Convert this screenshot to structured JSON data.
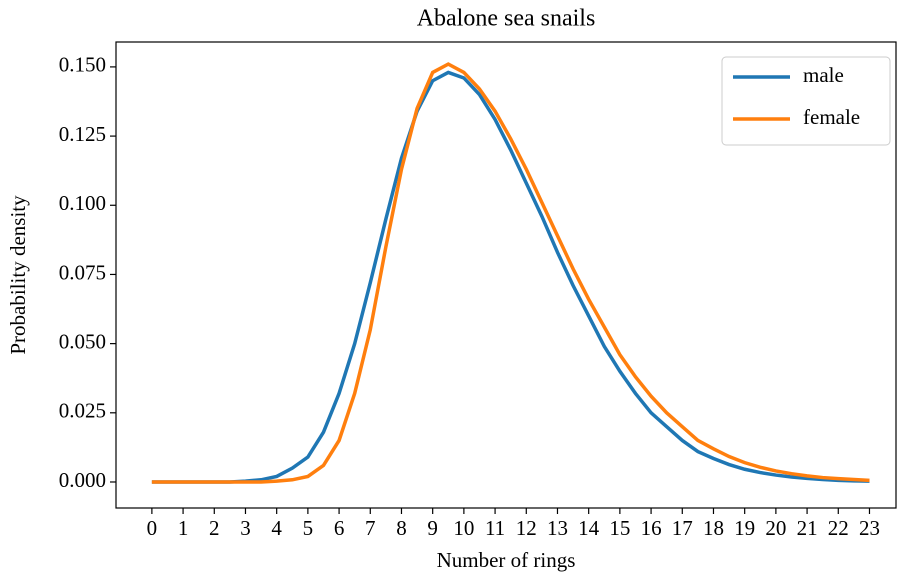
{
  "chart_data": {
    "type": "line",
    "title": "Abalone sea snails",
    "xlabel": "Number of rings",
    "ylabel": "Probability density",
    "x": [
      0,
      0.5,
      1,
      1.5,
      2,
      2.5,
      3,
      3.5,
      4,
      4.5,
      5,
      5.5,
      6,
      6.5,
      7,
      7.5,
      8,
      8.5,
      9,
      9.5,
      10,
      10.5,
      11,
      11.5,
      12,
      12.5,
      13,
      13.5,
      14,
      14.5,
      15,
      15.5,
      16,
      16.5,
      17,
      17.5,
      18,
      18.5,
      19,
      19.5,
      20,
      20.5,
      21,
      21.5,
      22,
      22.5,
      23
    ],
    "series": [
      {
        "name": "male",
        "color": "#1f77b4",
        "values": [
          0,
          0,
          0,
          0,
          0,
          0,
          0.0003,
          0.0008,
          0.002,
          0.005,
          0.009,
          0.018,
          0.032,
          0.05,
          0.072,
          0.095,
          0.117,
          0.134,
          0.145,
          0.148,
          0.146,
          0.14,
          0.131,
          0.12,
          0.108,
          0.096,
          0.083,
          0.071,
          0.06,
          0.049,
          0.04,
          0.032,
          0.025,
          0.02,
          0.015,
          0.011,
          0.0085,
          0.0063,
          0.0046,
          0.0034,
          0.0025,
          0.0018,
          0.0013,
          0.0009,
          0.0006,
          0.0004,
          0.0003
        ]
      },
      {
        "name": "female",
        "color": "#ff7f0e",
        "values": [
          0,
          0,
          0,
          0,
          0,
          0,
          0,
          0,
          0.0003,
          0.0008,
          0.002,
          0.006,
          0.015,
          0.032,
          0.055,
          0.085,
          0.113,
          0.135,
          0.148,
          0.151,
          0.148,
          0.142,
          0.134,
          0.124,
          0.113,
          0.101,
          0.089,
          0.077,
          0.066,
          0.056,
          0.046,
          0.038,
          0.031,
          0.025,
          0.02,
          0.015,
          0.012,
          0.0092,
          0.007,
          0.0053,
          0.004,
          0.003,
          0.0022,
          0.0016,
          0.0012,
          0.0009,
          0.0006
        ]
      }
    ],
    "xlim": [
      -1.15,
      23.85
    ],
    "xticks": [
      0,
      1,
      2,
      3,
      4,
      5,
      6,
      7,
      8,
      9,
      10,
      11,
      12,
      13,
      14,
      15,
      16,
      17,
      18,
      19,
      20,
      21,
      22,
      23
    ],
    "ylim": [
      -0.0094,
      0.159
    ],
    "yticks": [
      {
        "value": 0,
        "label": "0.000"
      },
      {
        "value": 0.025,
        "label": "0.025"
      },
      {
        "value": 0.05,
        "label": "0.050"
      },
      {
        "value": 0.075,
        "label": "0.075"
      },
      {
        "value": 0.1,
        "label": "0.100"
      },
      {
        "value": 0.125,
        "label": "0.125"
      },
      {
        "value": 0.15,
        "label": "0.150"
      }
    ],
    "legend": "upper right"
  }
}
